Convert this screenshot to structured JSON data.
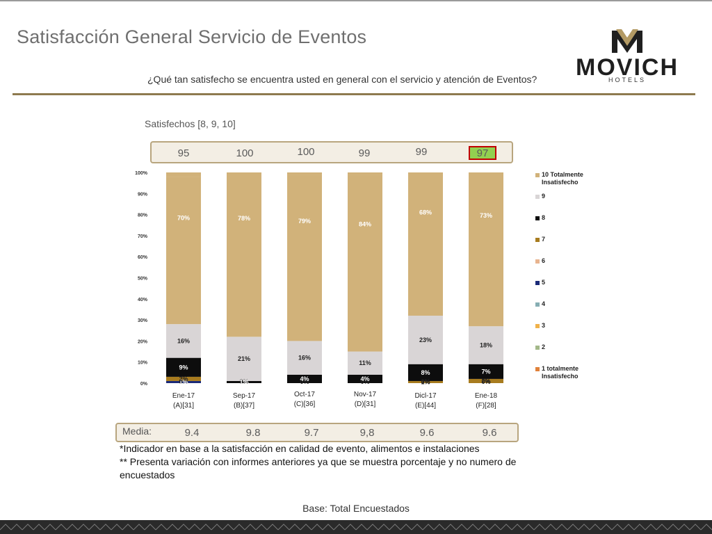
{
  "page": {
    "title": "Satisfacción General Servicio de Eventos",
    "question": "¿Qué tan satisfecho se encuentra usted en general con el servicio y atención de Eventos?",
    "satisfied_label": "Satisfechos [8, 9, 10]",
    "media_label": "Media:",
    "notes": [
      "*Indicador en base a la satisfacción en calidad de evento, alimentos e instalaciones",
      "** Presenta variación con informes anteriores ya que se muestra porcentaje y no numero de encuestados"
    ],
    "base": "Base: Total Encuestados"
  },
  "logo": {
    "word": "MOVICH",
    "sub": "HOTELS",
    "icon": "movich-m-logo-icon"
  },
  "colors": {
    "c10": "#d1b27a",
    "c9": "#d9d5d6",
    "c8": "#0d0d0d",
    "c7": "#a87c1f",
    "c6": "#e8b48f",
    "c5": "#1a2a78",
    "c4": "#86aeb3",
    "c3": "#f0b24a",
    "c2": "#a3b889",
    "c1": "#e0813a",
    "gold": "#8d7a4f",
    "highlight": "#92d050",
    "highlight_border": "#c00000"
  },
  "satisfied": [
    "95",
    "100",
    "100",
    "99",
    "99",
    "97"
  ],
  "media": [
    "9.4",
    "9.8",
    "9.7",
    "9,8",
    "9.6",
    "9.6"
  ],
  "chart_data": {
    "type": "bar",
    "stacked": true,
    "categories": [
      [
        "Ene-17",
        "(A)[31]"
      ],
      [
        "Sep-17",
        "(B)[37]"
      ],
      [
        "Oct-17",
        "(C)[36]"
      ],
      [
        "Nov-17",
        "(D)[31]"
      ],
      [
        "Dicl-17",
        "(E)[44]"
      ],
      [
        "Ene-18",
        "(F)[28]"
      ]
    ],
    "yticks": [
      "0%",
      "10%",
      "20%",
      "30%",
      "40%",
      "50%",
      "60%",
      "70%",
      "80%",
      "90%",
      "100%"
    ],
    "ylim": [
      0,
      100
    ],
    "legend_position": "right",
    "series": [
      {
        "name": "1 totalmente Insatisfecho",
        "color_key": "c1",
        "values": [
          0,
          0,
          0,
          0,
          0,
          0
        ],
        "labels": [
          "0%",
          "0%",
          "0%",
          "0%",
          "0%",
          "0%"
        ]
      },
      {
        "name": "2",
        "color_key": "c2",
        "values": [
          0,
          0,
          0,
          0,
          0,
          0
        ],
        "labels": [
          "",
          "",
          "",
          "",
          "",
          ""
        ]
      },
      {
        "name": "3",
        "color_key": "c3",
        "values": [
          0,
          0,
          0,
          0,
          0,
          0
        ],
        "labels": [
          "",
          "",
          "",
          "",
          "",
          ""
        ]
      },
      {
        "name": "4",
        "color_key": "c4",
        "values": [
          0,
          0,
          0,
          0,
          0,
          0
        ],
        "labels": [
          "",
          "",
          "",
          "",
          "",
          ""
        ]
      },
      {
        "name": "5",
        "color_key": "c5",
        "values": [
          1,
          0,
          0,
          0,
          0,
          0
        ],
        "labels": [
          "1%",
          "",
          "",
          "",
          "",
          ""
        ]
      },
      {
        "name": "6",
        "color_key": "c6",
        "values": [
          0,
          0,
          0,
          0,
          0,
          0
        ],
        "labels": [
          "",
          "",
          "",
          "",
          "",
          ""
        ]
      },
      {
        "name": "7",
        "color_key": "c7",
        "values": [
          2,
          0,
          0,
          0,
          1,
          2
        ],
        "labels": [
          "2%",
          "",
          "",
          "",
          "1%",
          "2%"
        ]
      },
      {
        "name": "8",
        "color_key": "c8",
        "values": [
          9,
          1,
          4,
          4,
          8,
          7
        ],
        "labels": [
          "9%",
          "1%",
          "4%",
          "4%",
          "8%",
          "7%"
        ]
      },
      {
        "name": "9",
        "color_key": "c9",
        "values": [
          16,
          21,
          16,
          11,
          23,
          18
        ],
        "labels": [
          "16%",
          "21%",
          "16%",
          "11%",
          "23%",
          "18%"
        ]
      },
      {
        "name": "10 Totalmente Insatisfecho",
        "color_key": "c10",
        "values": [
          70,
          78,
          79,
          84,
          68,
          73
        ],
        "labels": [
          "70%",
          "78%",
          "79%",
          "84%",
          "68%",
          "73%"
        ]
      }
    ]
  }
}
